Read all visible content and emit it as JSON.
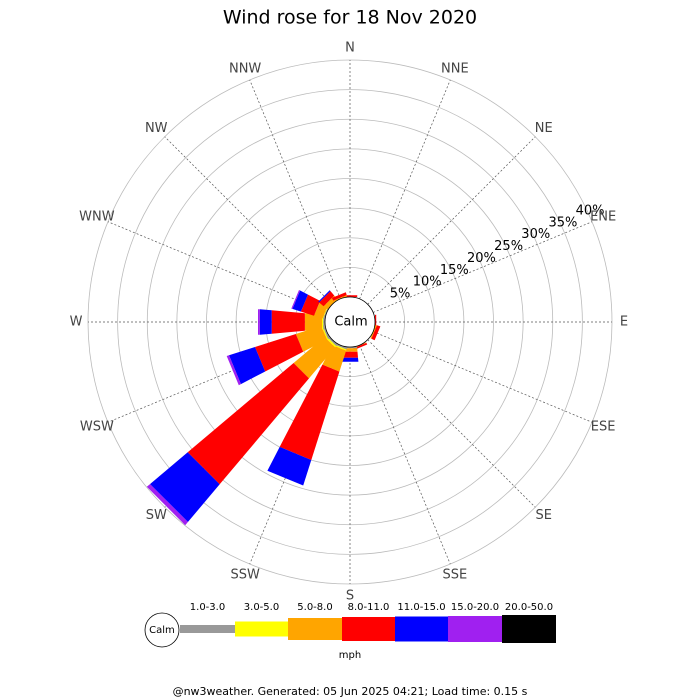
{
  "chart_data": {
    "type": "windrose",
    "title": "Wind rose for 18 Nov 2020",
    "directions": [
      "N",
      "NNE",
      "NE",
      "ENE",
      "E",
      "ESE",
      "SE",
      "SSE",
      "S",
      "SSW",
      "SW",
      "WSW",
      "W",
      "WNW",
      "NW",
      "NNW"
    ],
    "calm_label": "Calm",
    "unit": "mph",
    "rlim": [
      0,
      40
    ],
    "rticks": [
      {
        "value": 5,
        "label": "5%"
      },
      {
        "value": 10,
        "label": "10%"
      },
      {
        "value": 15,
        "label": "15%"
      },
      {
        "value": 20,
        "label": "20%"
      },
      {
        "value": 25,
        "label": "25%"
      },
      {
        "value": 30,
        "label": "30%"
      },
      {
        "value": 35,
        "label": "35%"
      },
      {
        "value": 40,
        "label": "40%"
      }
    ],
    "series": [
      {
        "name": "1.0-3.0",
        "color": "#999999",
        "values": [
          0,
          0,
          0,
          0,
          0,
          0,
          0,
          0,
          0.2,
          0.3,
          0.3,
          0.3,
          0.3,
          0.2,
          0,
          0
        ]
      },
      {
        "name": "3.0-5.0",
        "color": "#ffff00",
        "values": [
          0,
          0,
          0,
          0,
          0,
          0,
          0,
          0,
          0,
          0.2,
          0.3,
          0.2,
          0.2,
          0.1,
          0,
          0
        ]
      },
      {
        "name": "5.0-8.0",
        "color": "#ffa500",
        "values": [
          0,
          0,
          0,
          0,
          0,
          0.2,
          0,
          0.1,
          0.6,
          3.7,
          6.8,
          4.5,
          2.9,
          1.5,
          0.8,
          0.2
        ]
      },
      {
        "name": "8.0-11.0",
        "color": "#ff0000",
        "values": [
          0.3,
          0,
          0,
          0,
          0.2,
          0.6,
          0,
          0.3,
          1.0,
          15.6,
          23.3,
          7.2,
          5.6,
          2.3,
          1.0,
          0.5
        ]
      },
      {
        "name": "11.0-15.0",
        "color": "#0000ff",
        "values": [
          0,
          0,
          0,
          0,
          0,
          0,
          0,
          0,
          0.7,
          4.5,
          8.3,
          4.6,
          2.0,
          1.5,
          0.2,
          0
        ]
      },
      {
        "name": "15.0-20.0",
        "color": "#a020f0",
        "values": [
          0,
          0,
          0,
          0,
          0,
          0,
          0,
          0,
          0,
          0,
          0.7,
          0.4,
          0.3,
          0.2,
          0,
          0
        ]
      },
      {
        "name": "20.0-50.0",
        "color": "#000000",
        "values": [
          0,
          0,
          0,
          0,
          0,
          0,
          0,
          0,
          0,
          0,
          0,
          0,
          0,
          0,
          0,
          0
        ]
      }
    ],
    "footer": "@nw3weather. Generated: 05 Jun 2025 04:21; Load time: 0.15 s"
  }
}
